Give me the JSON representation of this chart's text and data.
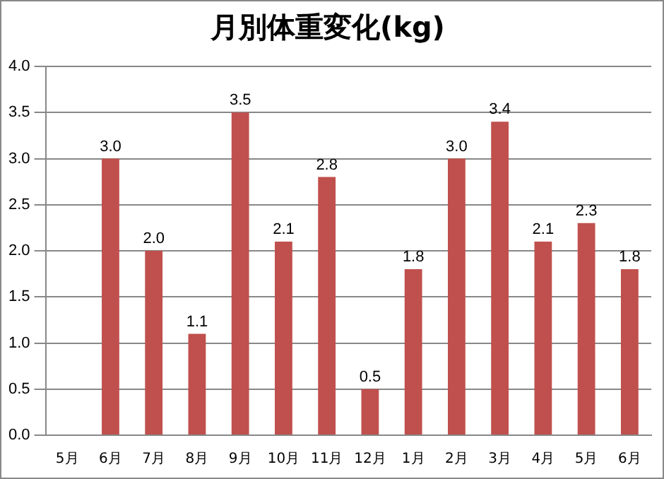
{
  "chart_data": {
    "type": "bar",
    "title": "月別体重変化(kg)",
    "categories": [
      "5月",
      "6月",
      "7月",
      "8月",
      "9月",
      "10月",
      "11月",
      "12月",
      "1月",
      "2月",
      "3月",
      "4月",
      "5月",
      "6月"
    ],
    "values": [
      null,
      3.0,
      2.0,
      1.1,
      3.5,
      2.1,
      2.8,
      0.5,
      1.8,
      3.0,
      3.4,
      2.1,
      2.3,
      1.8
    ],
    "value_labels": [
      null,
      "3.0",
      "2.0",
      "1.1",
      "3.5",
      "2.1",
      "2.8",
      "0.5",
      "1.8",
      "3.0",
      "3.4",
      "2.1",
      "2.3",
      "1.8"
    ],
    "color": "#c0504d",
    "ylim": [
      0,
      4
    ],
    "yticks": [
      {
        "value": 0,
        "label": "0.0"
      },
      {
        "value": 0.5,
        "label": "0.5"
      },
      {
        "value": 1,
        "label": "1.0"
      },
      {
        "value": 1.5,
        "label": "1.5"
      },
      {
        "value": 2,
        "label": "2.0"
      },
      {
        "value": 2.5,
        "label": "2.5"
      },
      {
        "value": 3,
        "label": "3.0"
      },
      {
        "value": 3.5,
        "label": "3.5"
      },
      {
        "value": 4,
        "label": "4.0"
      }
    ],
    "grid": "y",
    "legend": false
  }
}
